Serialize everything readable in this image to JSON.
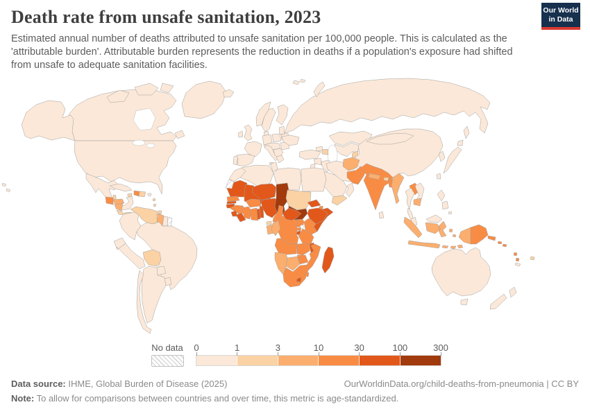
{
  "header": {
    "title": "Death rate from unsafe sanitation, 2023",
    "subtitle": "Estimated annual number of deaths attributed to unsafe sanitation per 100,000 people. This is calculated as the 'attributable burden'. Attributable burden represents the reduction in deaths if a population's exposure had shifted from unsafe to adequate sanitation facilities.",
    "logo_line1": "Our World",
    "logo_line2": "in Data",
    "logo_colors": {
      "background": "#16304d",
      "underline": "#dc3a32"
    }
  },
  "legend": {
    "no_data_label": "No data",
    "ticks": [
      "0",
      "1",
      "3",
      "10",
      "30",
      "100",
      "300"
    ]
  },
  "footer": {
    "source_label": "Data source:",
    "source_text": " IHME, Global Burden of Disease (2025)",
    "link_text": "OurWorldinData.org/child-deaths-from-pneumonia | CC BY",
    "note_label": "Note:",
    "note_text": " To allow for comparisons between countries and over time, this metric is age-standardized."
  },
  "chart_data": {
    "type": "heatmap",
    "subtype": "choropleth-world-map",
    "title": "Death rate from unsafe sanitation, 2023",
    "unit": "deaths per 100,000 people",
    "legend_position": "bottom",
    "thresholds": [
      0,
      1,
      3,
      10,
      30,
      100,
      300
    ],
    "scale": {
      "colors": [
        "#fbe8d8",
        "#fbd2a4",
        "#fbae6e",
        "#f98c44",
        "#e2581a",
        "#a13a0d"
      ],
      "bin_labels": [
        "0-1",
        "1-3",
        "3-10",
        "10-30",
        "30-100",
        "100-300"
      ],
      "no_data": "hatched"
    },
    "regions": {
      "greenland": 0,
      "canada": 0,
      "united-states": 0,
      "mexico": 0,
      "cuba": 0,
      "jamaica": 1,
      "haiti": 3,
      "dominican-republic": 1,
      "puerto-rico": 0,
      "lesser-antilles": 1,
      "trinidad-and-tobago": 1,
      "belize": 1,
      "guatemala": 3,
      "honduras": 2,
      "nicaragua": 2,
      "costa-rica": 1,
      "panama": 1,
      "colombia": 0,
      "venezuela": 1,
      "guyana": 2,
      "suriname": 0,
      "french-guiana": "nodata",
      "ecuador": 0,
      "peru": 0,
      "brazil": 0,
      "bolivia": 1,
      "paraguay": 0,
      "uruguay": 0,
      "argentina": 0,
      "chile": 0,
      "iceland": 0,
      "united-kingdom": 0,
      "ireland": 0,
      "norway": 0,
      "sweden": 0,
      "finland": 0,
      "denmark": 0,
      "baltic-states": 0,
      "belarus": 0,
      "poland": 0,
      "germany": 0,
      "france": 0,
      "portugal": 0,
      "spain": 0,
      "italy": 0,
      "central-europe": 0,
      "balkans": 0,
      "greece": 0,
      "romania": 0,
      "ukraine": 0,
      "russia": 0,
      "svalbard": 0,
      "kazakhstan": 0,
      "central-asia": 0,
      "tajikistan": 1,
      "georgia": 0,
      "azerbaijan": 1,
      "turkey": 0,
      "syria": 0,
      "iraq": 0,
      "jordan": 0,
      "saudi-arabia": 0,
      "yemen": 1,
      "oman": 0,
      "iran": 0,
      "afghanistan": 2,
      "pakistan": 3,
      "india": 3,
      "sri-lanka": 0,
      "nepal": 2,
      "bhutan": 1,
      "bangladesh": 3,
      "myanmar": 2,
      "china": 0,
      "mongolia": 0,
      "south-korea": 0,
      "japan": 0,
      "taiwan": 0,
      "vietnam": 0,
      "laos": 3,
      "thailand": 0,
      "cambodia": 2,
      "malaysia": 0,
      "indonesia": 2,
      "timor-leste": 2,
      "philippines": 0,
      "papua-new-guinea": 3,
      "solomon-islands": 3,
      "vanuatu": 3,
      "fiji": 1,
      "new-caledonia": 0,
      "australia": 0,
      "new-zealand": 0,
      "morocco": 0,
      "western-sahara": "nodata",
      "algeria": 0,
      "tunisia": 0,
      "libya": 0,
      "egypt": 0,
      "mauritania": 4,
      "mali": 4,
      "niger": 4,
      "chad": 5,
      "sudan": 1,
      "south-sudan": 5,
      "senegal": 3,
      "gambia": 4,
      "guinea-bissau": 4,
      "guinea": 3,
      "sierra-leone": 4,
      "liberia": 4,
      "cote-divoire": 3,
      "ghana": 3,
      "togo": 4,
      "benin": 4,
      "burkina-faso": 3,
      "nigeria": 4,
      "eritrea": 4,
      "djibouti": 3,
      "ethiopia": 4,
      "somalia": 4,
      "kenya": 3,
      "uganda": 3,
      "rwanda": 3,
      "burundi": 4,
      "tanzania": 3,
      "cameroon": 3,
      "central-african-republic": 4,
      "equatorial-guinea": 1,
      "gabon": 2,
      "congo": 2,
      "democratic-republic-of-congo": 3,
      "angola": 3,
      "zambia": 3,
      "malawi": 4,
      "mozambique": 3,
      "zimbabwe": 3,
      "botswana": 2,
      "namibia": 2,
      "south-africa": 3,
      "lesotho": 4,
      "eswatini": 3,
      "madagascar": 4
    }
  }
}
